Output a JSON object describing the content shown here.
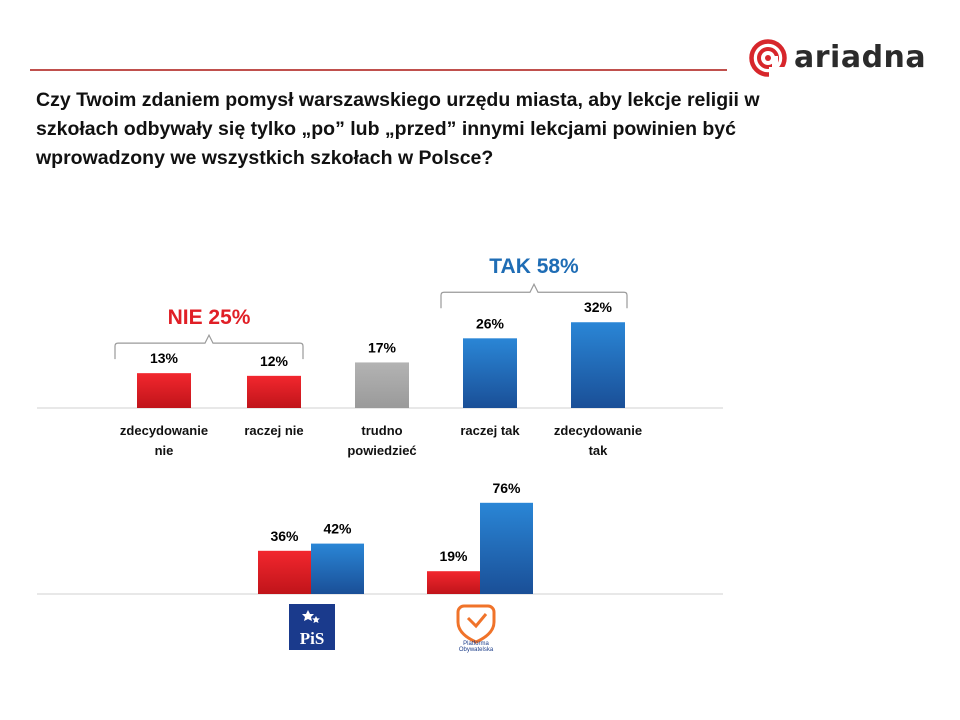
{
  "brand": {
    "name": "ariadna"
  },
  "question": "Czy Twoim zdaniem pomysł warszawskiego urzędu miasta, aby lekcje religii w szkołach odbywały się tylko „po” lub „przed” innymi lekcjami powinien być wprowadzony we wszystkich szkołach w Polsce?",
  "colors": {
    "red": "#e01f26",
    "blue": "#1f6db5",
    "gray": "#a6a6a6",
    "brand_red": "#d7262b"
  },
  "chart_data": [
    {
      "type": "bar",
      "title": "Czy Twoim zdaniem pomysł warszawskiego urzędu miasta ... powinien być wprowadzony we wszystkich szkołach w Polsce?",
      "categories": [
        [
          "zdecydowanie",
          "nie"
        ],
        [
          "raczej nie"
        ],
        [
          "trudno",
          "powiedzieć"
        ],
        [
          "raczej tak"
        ],
        [
          "zdecydowanie",
          "tak"
        ]
      ],
      "values": [
        13,
        12,
        17,
        26,
        32
      ],
      "value_labels": [
        "13%",
        "12%",
        "17%",
        "26%",
        "32%"
      ],
      "bar_colors": [
        "red",
        "red",
        "gray",
        "blue",
        "blue"
      ],
      "ylim": [
        0,
        35
      ],
      "groups": [
        {
          "label": "NIE 25%",
          "from": 0,
          "to": 1,
          "color": "red"
        },
        {
          "label": "TAK 58%",
          "from": 3,
          "to": 4,
          "color": "blue"
        }
      ]
    },
    {
      "type": "bar",
      "categories": [
        "PiS",
        "Platforma Obywatelska"
      ],
      "series": [
        {
          "name": "NIE",
          "values": [
            36,
            19
          ],
          "labels": [
            "36%",
            "19%"
          ],
          "color": "red"
        },
        {
          "name": "TAK",
          "values": [
            42,
            76
          ],
          "labels": [
            "42%",
            "76%"
          ],
          "color": "blue"
        }
      ],
      "ylim": [
        0,
        80
      ]
    }
  ],
  "logos": {
    "pis": {
      "text": "PiS"
    },
    "po": {
      "line1": "Platforma",
      "line2": "Obywatelska"
    }
  }
}
